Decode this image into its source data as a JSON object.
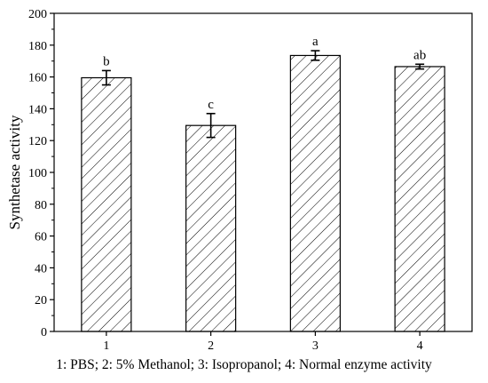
{
  "chart_data": {
    "type": "bar",
    "categories": [
      "1",
      "2",
      "3",
      "4"
    ],
    "values": [
      159.5,
      129.5,
      173.5,
      166.5
    ],
    "errors": [
      4.5,
      7.5,
      3.0,
      1.5
    ],
    "significance_labels": [
      "b",
      "c",
      "a",
      "ab"
    ],
    "ylabel": "Synthetase activity",
    "xlabel": "",
    "ylim": [
      0,
      200
    ],
    "yticks": [
      0,
      20,
      40,
      60,
      80,
      100,
      120,
      140,
      160,
      180,
      200
    ],
    "bar_pattern": "diagonal-hatch",
    "bar_color": "#000000",
    "grid": false,
    "caption": "1: PBS; 2: 5% Methanol; 3: Isopropanol; 4: Normal enzyme activity"
  }
}
